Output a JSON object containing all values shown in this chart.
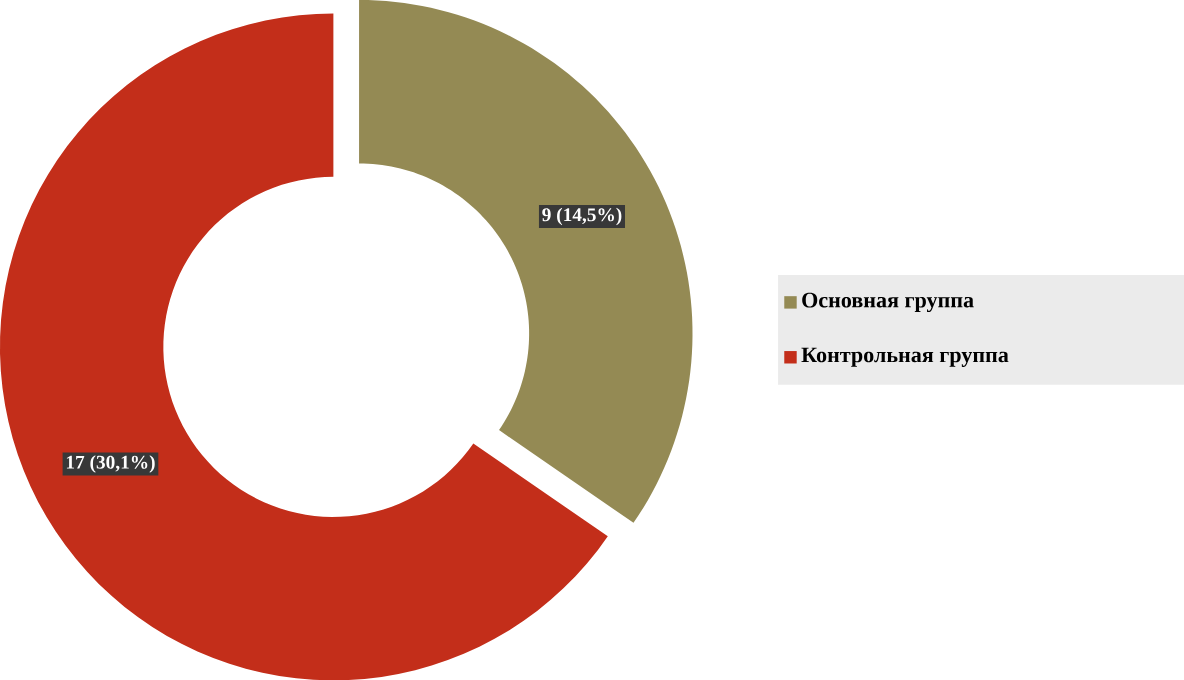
{
  "chart_data": {
    "type": "donut",
    "categories": [
      "Основная группа",
      "Контрольная группа"
    ],
    "values": [
      9,
      17
    ],
    "colors": [
      "#948a54",
      "#c32e1a"
    ],
    "value_labels": [
      "9 (14,5%)",
      "17 (30,1%)"
    ],
    "legend": "right"
  }
}
